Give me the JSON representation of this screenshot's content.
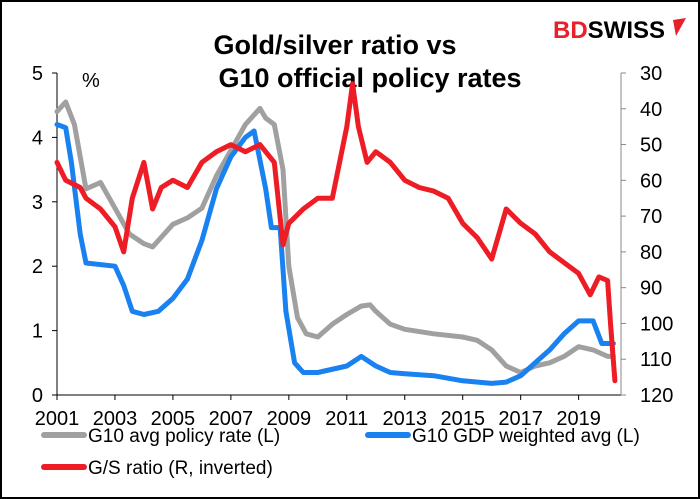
{
  "brand": {
    "part1": "BD",
    "part2": "SWISS",
    "color1": "#e8202a",
    "color2": "#000000"
  },
  "chart_data": {
    "type": "line",
    "title": [
      "Gold/silver ratio vs",
      "G10 official policy rates"
    ],
    "left_axis": {
      "unit": "%",
      "ylim": [
        0,
        5
      ],
      "ticks": [
        "0",
        "1",
        "2",
        "3",
        "4",
        "5"
      ]
    },
    "right_axis": {
      "ylim": [
        30,
        120
      ],
      "inverted": true,
      "ticks": [
        "30",
        "40",
        "50",
        "60",
        "70",
        "80",
        "90",
        "100",
        "110",
        "120"
      ]
    },
    "x_axis": {
      "xlim": [
        2001,
        2020.6
      ],
      "ticks": [
        "2001",
        "2003",
        "2005",
        "2007",
        "2009",
        "2011",
        "2013",
        "2015",
        "2017",
        "2019"
      ]
    },
    "grid": false,
    "legend_placement": "bottom",
    "series": [
      {
        "name": "G10 avg policy rate (L)",
        "axis": "left",
        "color": "#a0a0a0",
        "x": [
          2001,
          2001.3,
          2001.6,
          2002,
          2002.5,
          2003,
          2003.5,
          2004,
          2004.3,
          2004.7,
          2005,
          2005.5,
          2006,
          2006.5,
          2007,
          2007.5,
          2008,
          2008.2,
          2008.5,
          2008.8,
          2009,
          2009.3,
          2009.6,
          2010,
          2010.5,
          2011,
          2011.5,
          2011.8,
          2012,
          2012.5,
          2013,
          2014,
          2015,
          2015.5,
          2016,
          2016.5,
          2017,
          2017.5,
          2018,
          2018.5,
          2019,
          2019.5,
          2020,
          2020.2
        ],
        "y": [
          4.4,
          4.55,
          4.2,
          3.2,
          3.3,
          2.9,
          2.5,
          2.35,
          2.3,
          2.5,
          2.65,
          2.75,
          2.9,
          3.4,
          3.8,
          4.2,
          4.45,
          4.3,
          4.2,
          3.5,
          2.0,
          1.2,
          0.95,
          0.9,
          1.1,
          1.25,
          1.38,
          1.4,
          1.3,
          1.1,
          1.02,
          0.95,
          0.9,
          0.85,
          0.7,
          0.45,
          0.35,
          0.45,
          0.5,
          0.6,
          0.75,
          0.7,
          0.6,
          0.6
        ]
      },
      {
        "name": "G10 GDP weighted avg (L)",
        "axis": "left",
        "color": "#1a82f0",
        "x": [
          2001,
          2001.3,
          2001.5,
          2001.8,
          2002,
          2003,
          2003.3,
          2003.6,
          2004,
          2004.5,
          2005,
          2005.5,
          2006,
          2006.5,
          2007,
          2007.5,
          2007.8,
          2008.2,
          2008.4,
          2008.7,
          2008.9,
          2009.2,
          2009.5,
          2010,
          2011,
          2011.5,
          2012,
          2012.5,
          2013,
          2014,
          2015,
          2016,
          2016.5,
          2017,
          2017.5,
          2018,
          2018.5,
          2019,
          2019.5,
          2019.8,
          2020.2
        ],
        "y": [
          4.2,
          4.15,
          3.6,
          2.5,
          2.05,
          2.0,
          1.7,
          1.3,
          1.25,
          1.3,
          1.5,
          1.8,
          2.4,
          3.2,
          3.7,
          4.0,
          4.1,
          3.2,
          2.6,
          2.6,
          1.3,
          0.5,
          0.35,
          0.35,
          0.45,
          0.6,
          0.45,
          0.35,
          0.33,
          0.3,
          0.22,
          0.18,
          0.2,
          0.3,
          0.5,
          0.7,
          0.95,
          1.15,
          1.15,
          0.8,
          0.8
        ]
      },
      {
        "name": "G/S ratio (R, inverted)",
        "axis": "right",
        "color": "#ee1c25",
        "x": [
          2001,
          2001.3,
          2001.8,
          2002,
          2002.5,
          2003,
          2003.3,
          2003.6,
          2004,
          2004.3,
          2004.6,
          2005,
          2005.5,
          2006,
          2006.5,
          2007,
          2007.5,
          2008,
          2008.5,
          2008.8,
          2009,
          2009.5,
          2010,
          2010.5,
          2011,
          2011.2,
          2011.4,
          2011.7,
          2012,
          2012.5,
          2013,
          2013.5,
          2014,
          2014.5,
          2015,
          2015.5,
          2016,
          2016.5,
          2017,
          2017.5,
          2018,
          2018.5,
          2019,
          2019.4,
          2019.7,
          2020,
          2020.1,
          2020.25
        ],
        "y": [
          55,
          60,
          62,
          65,
          68,
          73,
          80,
          65,
          55,
          68,
          62,
          60,
          62,
          55,
          52,
          50,
          52,
          50,
          55,
          78,
          72,
          68,
          65,
          65,
          45,
          33,
          45,
          55,
          52,
          55,
          60,
          62,
          63,
          65,
          72,
          76,
          82,
          68,
          72,
          75,
          80,
          83,
          86,
          92,
          87,
          88,
          100,
          116
        ]
      }
    ]
  }
}
